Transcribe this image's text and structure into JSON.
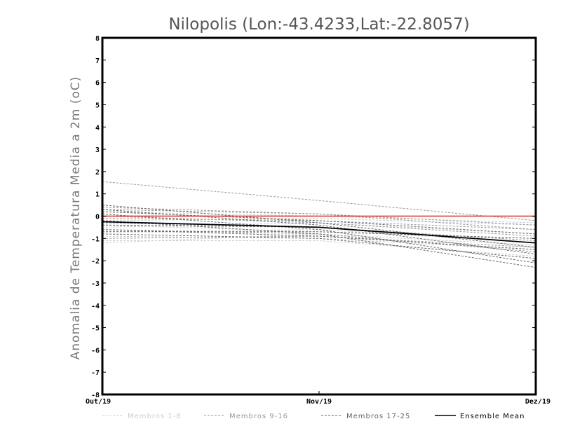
{
  "chart_data": {
    "type": "line",
    "title": "Nilopolis (Lon:-43.4233,Lat:-22.8057)",
    "xlabel": "",
    "ylabel": "Anomalia de Temperatura Media a 2m (oC)",
    "categories": [
      "Out/19",
      "Nov/19",
      "Dez/19"
    ],
    "ylim": [
      -8,
      8
    ],
    "yticks": [
      "8",
      "7",
      "6",
      "5",
      "4",
      "3",
      "2",
      "1",
      "0",
      "-1",
      "-2",
      "-3",
      "-4",
      "-5",
      "-6",
      "-7",
      "-8"
    ],
    "grid": false,
    "legend_position": "bottom",
    "legend": [
      {
        "name": "Membros 1-8",
        "color": "#cccccc",
        "style": "dashed"
      },
      {
        "name": "Membros 9-16",
        "color": "#999999",
        "style": "dashed"
      },
      {
        "name": "Membros 17-25",
        "color": "#666666",
        "style": "dashed"
      },
      {
        "name": "Ensemble Mean",
        "color": "#000000",
        "style": "solid"
      }
    ],
    "series": [
      {
        "group": "Membros 1-8",
        "color": "#cccccc",
        "style": "dashed",
        "values": [
          -1.2,
          -0.8,
          -1.3
        ]
      },
      {
        "group": "Membros 1-8",
        "color": "#cccccc",
        "style": "dashed",
        "values": [
          -1.1,
          -1.1,
          -1.8
        ]
      },
      {
        "group": "Membros 1-8",
        "color": "#cccccc",
        "style": "dashed",
        "values": [
          -0.9,
          -1.0,
          -1.5
        ]
      },
      {
        "group": "Membros 1-8",
        "color": "#cccccc",
        "style": "dashed",
        "values": [
          -0.5,
          -0.3,
          -0.8
        ]
      },
      {
        "group": "Membros 1-8",
        "color": "#cccccc",
        "style": "dashed",
        "values": [
          -0.2,
          -0.1,
          -0.4
        ]
      },
      {
        "group": "Membros 1-8",
        "color": "#cccccc",
        "style": "dashed",
        "values": [
          0.2,
          0.0,
          -0.3
        ]
      },
      {
        "group": "Membros 1-8",
        "color": "#cccccc",
        "style": "dashed",
        "values": [
          -0.7,
          -0.6,
          -1.2
        ]
      },
      {
        "group": "Membros 1-8",
        "color": "#cccccc",
        "style": "dashed",
        "values": [
          -0.4,
          -0.7,
          -1.0
        ]
      },
      {
        "group": "Membros 9-16",
        "color": "#999999",
        "style": "dashed",
        "values": [
          1.55,
          0.7,
          -0.2
        ]
      },
      {
        "group": "Membros 9-16",
        "color": "#999999",
        "style": "dashed",
        "values": [
          0.4,
          0.1,
          -0.6
        ]
      },
      {
        "group": "Membros 9-16",
        "color": "#999999",
        "style": "dashed",
        "values": [
          0.3,
          0.1,
          -0.4
        ]
      },
      {
        "group": "Membros 9-16",
        "color": "#999999",
        "style": "dashed",
        "values": [
          -0.1,
          -0.2,
          -0.6
        ]
      },
      {
        "group": "Membros 9-16",
        "color": "#999999",
        "style": "dashed",
        "values": [
          -0.3,
          -0.5,
          -1.1
        ]
      },
      {
        "group": "Membros 9-16",
        "color": "#999999",
        "style": "dashed",
        "values": [
          -0.6,
          -0.8,
          -1.6
        ]
      },
      {
        "group": "Membros 9-16",
        "color": "#999999",
        "style": "dashed",
        "values": [
          -1.0,
          -0.9,
          -1.4
        ]
      },
      {
        "group": "Membros 9-16",
        "color": "#999999",
        "style": "dashed",
        "values": [
          0.0,
          -0.3,
          -0.9
        ]
      },
      {
        "group": "Membros 17-25",
        "color": "#666666",
        "style": "dashed",
        "values": [
          0.5,
          -0.3,
          -1.4
        ]
      },
      {
        "group": "Membros 17-25",
        "color": "#666666",
        "style": "dashed",
        "values": [
          0.3,
          -0.4,
          -1.7
        ]
      },
      {
        "group": "Membros 17-25",
        "color": "#666666",
        "style": "dashed",
        "values": [
          0.1,
          -0.6,
          -2.1
        ]
      },
      {
        "group": "Membros 17-25",
        "color": "#666666",
        "style": "dashed",
        "values": [
          -0.2,
          -0.8,
          -2.3
        ]
      },
      {
        "group": "Membros 17-25",
        "color": "#666666",
        "style": "dashed",
        "values": [
          -0.4,
          -0.5,
          -1.2
        ]
      },
      {
        "group": "Membros 17-25",
        "color": "#666666",
        "style": "dashed",
        "values": [
          -0.6,
          -0.9,
          -1.5
        ]
      },
      {
        "group": "Membros 17-25",
        "color": "#666666",
        "style": "dashed",
        "values": [
          -0.7,
          -0.7,
          -1.0
        ]
      },
      {
        "group": "Membros 17-25",
        "color": "#666666",
        "style": "dashed",
        "values": [
          0.2,
          -0.2,
          -0.8
        ]
      },
      {
        "group": "Membros 17-25",
        "color": "#666666",
        "style": "dashed",
        "values": [
          -0.8,
          -1.0,
          -1.9
        ]
      },
      {
        "group": "Ensemble Mean",
        "color": "#000000",
        "style": "solid",
        "values": [
          -0.25,
          -0.5,
          -1.2
        ]
      },
      {
        "group": "",
        "color": "#e04a4a",
        "style": "solid",
        "values": [
          0.0,
          0.0,
          0.0
        ]
      }
    ]
  }
}
